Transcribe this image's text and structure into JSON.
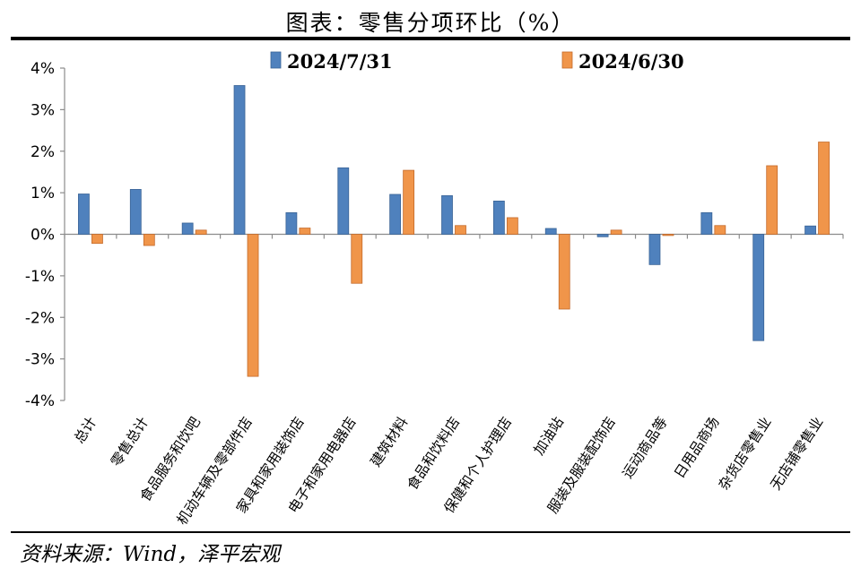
{
  "title": "图表：零售分项环比（%）",
  "source": "资料来源：Wind，泽平宏观",
  "colors": {
    "series1_fill": "#4f81bd",
    "series1_stroke": "#3a6496",
    "series2_fill": "#f0954a",
    "series2_stroke": "#c46a2a",
    "axis": "#8c8c8c"
  },
  "chart_data": {
    "type": "bar",
    "title": "零售分项环比（%）",
    "xlabel": "",
    "ylabel": "",
    "ylim": [
      -4,
      4
    ],
    "yticks": [
      4,
      3,
      2,
      1,
      0,
      -1,
      -2,
      -3,
      -4
    ],
    "ytick_labels": [
      "4%",
      "3%",
      "2%",
      "1%",
      "0%",
      "-1%",
      "-2%",
      "-3%",
      "-4%"
    ],
    "legend_position": "top",
    "categories": [
      "总计",
      "零售总计",
      "食品服务和饮吧",
      "机动车辆及零部件店",
      "家具和家用装饰店",
      "电子和家用电器店",
      "建筑材料",
      "食品和饮料店",
      "保健和个人护理店",
      "加油站",
      "服装及服装配饰店",
      "运动商品等",
      "日用品商场",
      "杂货店零售业",
      "无店铺零售业"
    ],
    "series": [
      {
        "name": "2024/7/31",
        "values": [
          0.97,
          1.08,
          0.27,
          3.58,
          0.52,
          1.6,
          0.96,
          0.93,
          0.8,
          0.14,
          -0.06,
          -0.73,
          0.52,
          -2.56,
          0.2
        ]
      },
      {
        "name": "2024/6/30",
        "values": [
          -0.22,
          -0.27,
          0.1,
          -3.42,
          0.15,
          -1.18,
          1.54,
          0.21,
          0.4,
          -1.8,
          0.1,
          -0.03,
          0.21,
          1.65,
          2.22
        ]
      }
    ]
  }
}
